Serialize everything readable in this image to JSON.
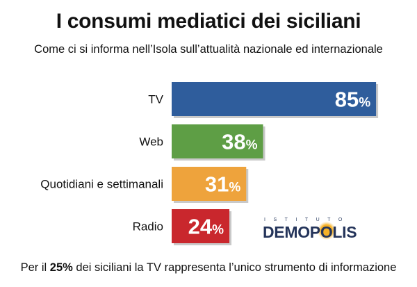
{
  "title": "I consumi mediatici dei siciliani",
  "subtitle": "Come ci si informa nell’Isola sull’attualità nazionale ed internazionale",
  "footnote": {
    "prefix": "Per il ",
    "highlight": "25%",
    "suffix": " dei siciliani la TV rappresenta l’unico strumento di informazione"
  },
  "logo": {
    "small": "ISTITUTO",
    "big": "DEMOPOLIS"
  },
  "chart_data": {
    "type": "bar",
    "orientation": "horizontal",
    "categories": [
      "TV",
      "Web",
      "Quotidiani e settimanali",
      "Radio"
    ],
    "values": [
      85,
      38,
      31,
      24
    ],
    "unit": "%",
    "colors": [
      "#2f5d9c",
      "#5e9e45",
      "#eea33c",
      "#c9272d"
    ],
    "xlim": [
      0,
      100
    ],
    "grid": false,
    "legend": "none"
  }
}
